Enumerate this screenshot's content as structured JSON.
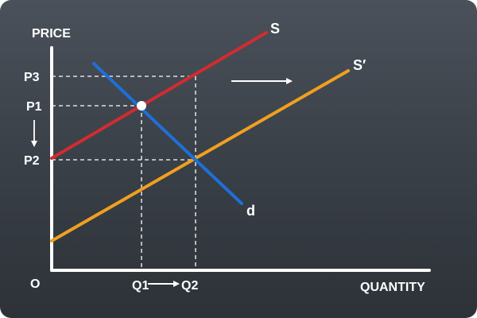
{
  "chart_data": {
    "type": "line",
    "title": "",
    "xlabel": "QUANTITY",
    "ylabel": "PRICE",
    "origin_label": "O",
    "x_ticks": [
      "Q1",
      "Q2"
    ],
    "y_ticks": [
      "P3",
      "P1",
      "P2"
    ],
    "series": [
      {
        "name": "S",
        "color": "#d32b30"
      },
      {
        "name": "S′",
        "color": "#f0a020"
      },
      {
        "name": "d",
        "color": "#1f6fd8"
      }
    ],
    "points": [
      {
        "label": "P1-Q1",
        "marker": "filled-circle"
      }
    ],
    "annotations": [
      {
        "type": "arrow",
        "direction": "right",
        "meaning": "supply shift"
      },
      {
        "type": "arrow",
        "direction": "down",
        "from": "P1",
        "to": "P2"
      },
      {
        "type": "arrow",
        "direction": "right",
        "from": "Q1",
        "to": "Q2"
      }
    ],
    "axis_color": "#ffffff",
    "dashed_guides": true
  }
}
